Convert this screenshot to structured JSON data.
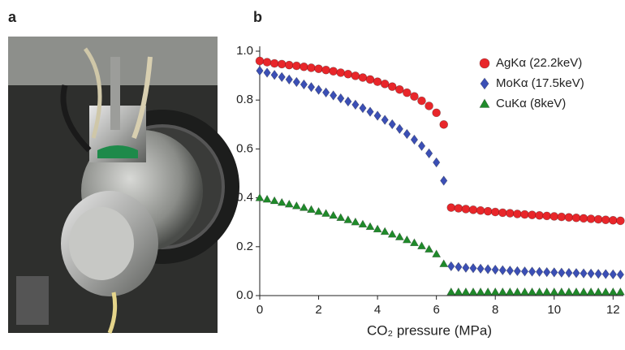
{
  "panels": [
    "a",
    "b"
  ],
  "chart_data": {
    "type": "scatter",
    "xlabel": "CO₂ pressure (MPa)",
    "x": [
      0,
      0.25,
      0.5,
      0.75,
      1,
      1.25,
      1.5,
      1.75,
      2,
      2.25,
      2.5,
      2.75,
      3,
      3.25,
      3.5,
      3.75,
      4,
      4.25,
      4.5,
      4.75,
      5,
      5.25,
      5.5,
      5.75,
      6,
      6.25,
      6.5,
      6.75,
      7,
      7.25,
      7.5,
      7.75,
      8,
      8.25,
      8.5,
      8.75,
      9,
      9.25,
      9.5,
      9.75,
      10,
      10.25,
      10.5,
      10.75,
      11,
      11.25,
      11.5,
      11.75,
      12,
      12.25
    ],
    "series": [
      {
        "name": "AgKα (22.2keV)",
        "color": "#e8262a",
        "marker": "circle",
        "values": [
          0.96,
          0.955,
          0.95,
          0.947,
          0.943,
          0.94,
          0.936,
          0.932,
          0.928,
          0.923,
          0.918,
          0.912,
          0.906,
          0.899,
          0.892,
          0.884,
          0.875,
          0.866,
          0.855,
          0.843,
          0.83,
          0.815,
          0.797,
          0.776,
          0.748,
          0.7,
          0.36,
          0.357,
          0.354,
          0.351,
          0.348,
          0.345,
          0.342,
          0.339,
          0.337,
          0.334,
          0.332,
          0.33,
          0.328,
          0.326,
          0.324,
          0.322,
          0.32,
          0.318,
          0.316,
          0.314,
          0.312,
          0.31,
          0.308,
          0.306
        ]
      },
      {
        "name": "MoKα (17.5keV)",
        "color": "#3b4fb5",
        "marker": "diamond",
        "values": [
          0.92,
          0.912,
          0.903,
          0.894,
          0.884,
          0.874,
          0.864,
          0.853,
          0.842,
          0.831,
          0.819,
          0.807,
          0.794,
          0.781,
          0.767,
          0.752,
          0.736,
          0.719,
          0.701,
          0.682,
          0.661,
          0.638,
          0.612,
          0.582,
          0.545,
          0.47,
          0.12,
          0.117,
          0.114,
          0.112,
          0.11,
          0.108,
          0.106,
          0.104,
          0.102,
          0.1,
          0.099,
          0.098,
          0.097,
          0.096,
          0.095,
          0.094,
          0.093,
          0.092,
          0.091,
          0.09,
          0.089,
          0.088,
          0.087,
          0.086
        ]
      },
      {
        "name": "CuKα (8keV)",
        "color": "#1f8a2a",
        "marker": "triangle",
        "values": [
          0.4,
          0.394,
          0.388,
          0.381,
          0.374,
          0.367,
          0.36,
          0.352,
          0.344,
          0.336,
          0.328,
          0.319,
          0.31,
          0.301,
          0.292,
          0.282,
          0.272,
          0.262,
          0.251,
          0.24,
          0.228,
          0.216,
          0.203,
          0.19,
          0.17,
          0.13,
          0.015,
          0.015,
          0.015,
          0.015,
          0.015,
          0.015,
          0.015,
          0.015,
          0.015,
          0.015,
          0.015,
          0.015,
          0.015,
          0.015,
          0.015,
          0.015,
          0.015,
          0.015,
          0.015,
          0.015,
          0.015,
          0.015,
          0.015,
          0.015
        ]
      }
    ],
    "xlim": [
      0,
      12.35
    ],
    "ylim": [
      0,
      1.02
    ],
    "xticks": [
      0,
      2,
      4,
      6,
      8,
      10,
      12
    ],
    "yticks": [
      {
        "value": 0,
        "label": "0.0"
      },
      {
        "value": 0.2,
        "label": "0.2"
      },
      {
        "value": 0.4,
        "label": "0.4"
      },
      {
        "value": 0.6,
        "label": "0.6"
      },
      {
        "value": 0.8,
        "label": "0.8"
      },
      {
        "value": 1,
        "label": "1.0"
      }
    ],
    "legend": "upper right"
  }
}
